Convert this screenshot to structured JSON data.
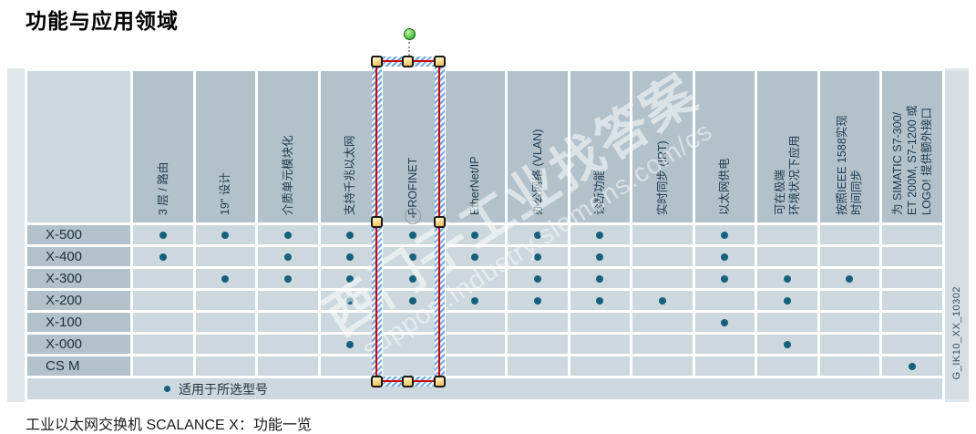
{
  "page": {
    "title": "功能与应用领域",
    "caption": "工业以太网交换机 SCALANCE X：功能一览",
    "figure_code": "G_IK10_XX_10302"
  },
  "watermark": {
    "line1": "西门子工业找答案",
    "line2": "support.industry.siemens.com/cs"
  },
  "legend": {
    "label": "适用于所选型号"
  },
  "matrix": {
    "columns": [
      "3 层 / 路由",
      "19\" 设计",
      "介质单元模块化",
      "支持千兆以太网",
      "PROFINET",
      "EtherNet/IP",
      "办公网络 (VLAN)",
      "诊断功能",
      "实时同步 (IRT)",
      "以太网供电",
      "可在极端\n环境状况下应用",
      "按照IEEE 1588实现\n时间同步",
      "为 SIMATIC S7-300/\nET 200M, S7-1200 或\nLOGO! 提供额外接口"
    ],
    "rows": [
      {
        "label": "X-500",
        "cells": [
          1,
          1,
          1,
          1,
          1,
          1,
          1,
          1,
          0,
          1,
          0,
          0,
          0
        ]
      },
      {
        "label": "X-400",
        "cells": [
          1,
          0,
          1,
          1,
          1,
          1,
          1,
          1,
          0,
          1,
          0,
          0,
          0
        ]
      },
      {
        "label": "X-300",
        "cells": [
          0,
          1,
          1,
          1,
          1,
          0,
          1,
          1,
          0,
          1,
          1,
          1,
          0
        ]
      },
      {
        "label": "X-200",
        "cells": [
          0,
          0,
          0,
          1,
          1,
          1,
          1,
          1,
          1,
          0,
          1,
          0,
          0
        ]
      },
      {
        "label": "X-100",
        "cells": [
          0,
          0,
          0,
          0,
          0,
          0,
          0,
          0,
          0,
          1,
          0,
          0,
          0
        ]
      },
      {
        "label": "X-000",
        "cells": [
          0,
          0,
          0,
          1,
          0,
          0,
          0,
          0,
          0,
          0,
          1,
          0,
          0
        ]
      },
      {
        "label": "CS M",
        "cells": [
          0,
          0,
          0,
          0,
          0,
          0,
          0,
          0,
          0,
          0,
          0,
          0,
          1
        ]
      }
    ]
  },
  "colors": {
    "dot": "#15607d",
    "header_cell": "#b2c1ca",
    "data_cell": "#cdd7de",
    "panel": "#dfe6ec",
    "selection_red": "#d60000",
    "hatch_blue": "#6fa6d9",
    "handle_yellow": "#f6d27e",
    "rotation_green": "#54c840"
  }
}
